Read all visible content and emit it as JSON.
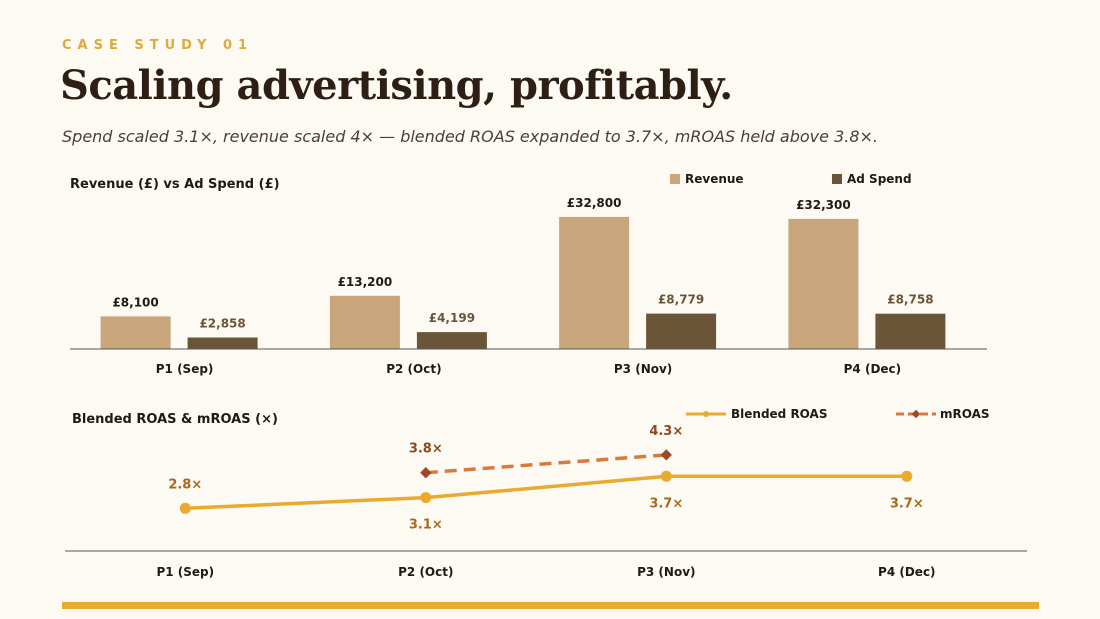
{
  "header": {
    "kicker": "CASE STUDY 01",
    "title": "Scaling advertising, profitably.",
    "subtitle": "Spend scaled 3.1×, revenue scaled 4× — blended ROAS expanded to 3.7×, mROAS held above 3.8×."
  },
  "colors": {
    "revenue": "#c8a57a",
    "ad_spend": "#6b5538",
    "blended_roas": "#eaaa2f",
    "mroas": "#d77a3c",
    "mroas_marker": "#9c4a24",
    "accent_rule": "#e8ab2f"
  },
  "chart_data": [
    {
      "type": "bar",
      "title": "Revenue (£) vs Ad Spend (£)",
      "categories": [
        "P1 (Sep)",
        "P2 (Oct)",
        "P3 (Nov)",
        "P4 (Dec)"
      ],
      "series": [
        {
          "name": "Revenue",
          "values": [
            8100,
            13200,
            32800,
            32300
          ],
          "labels": [
            "£8,100",
            "£13,200",
            "£32,800",
            "£32,300"
          ]
        },
        {
          "name": "Ad Spend",
          "values": [
            2858,
            4199,
            8779,
            8758
          ],
          "labels": [
            "£2,858",
            "£4,199",
            "£8,779",
            "£8,758"
          ]
        }
      ],
      "ylim": [
        0,
        36000
      ],
      "legend": "top-right",
      "grid": false
    },
    {
      "type": "line",
      "title": "Blended ROAS & mROAS (×)",
      "categories": [
        "P1 (Sep)",
        "P2 (Oct)",
        "P3 (Nov)",
        "P4 (Dec)"
      ],
      "series": [
        {
          "name": "Blended ROAS",
          "values": [
            2.8,
            3.1,
            3.7,
            3.7
          ],
          "labels": [
            "2.8×",
            "3.1×",
            "3.7×",
            "3.7×"
          ]
        },
        {
          "name": "mROAS",
          "values": [
            null,
            3.8,
            4.3,
            null
          ],
          "labels": [
            null,
            "3.8×",
            "4.3×",
            null
          ]
        }
      ],
      "ylim": [
        1.6,
        5.0
      ],
      "legend": "top-right",
      "grid": false
    }
  ]
}
